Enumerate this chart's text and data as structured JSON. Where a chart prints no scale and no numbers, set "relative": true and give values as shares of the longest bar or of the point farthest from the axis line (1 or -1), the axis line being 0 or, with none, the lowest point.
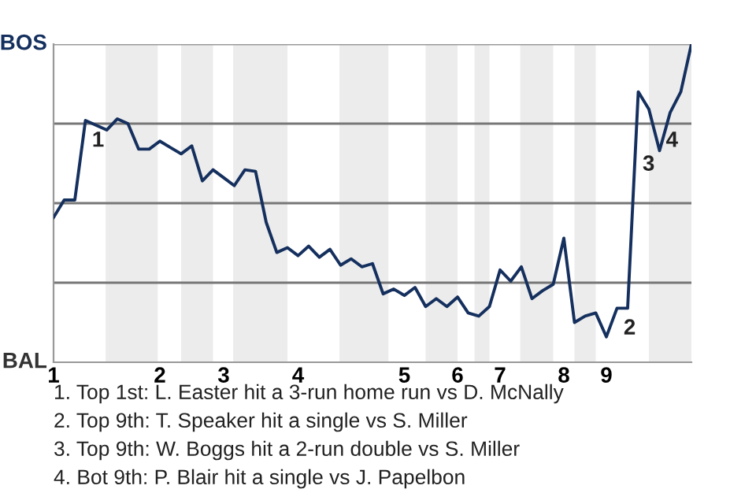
{
  "chart_data": {
    "type": "line",
    "relative": true,
    "categories": [
      "1",
      null,
      null,
      null,
      null,
      null,
      null,
      null,
      null,
      null,
      "2",
      null,
      null,
      null,
      null,
      null,
      "3",
      null,
      null,
      null,
      null,
      null,
      null,
      "4",
      null,
      null,
      null,
      null,
      null,
      null,
      null,
      null,
      null,
      "5",
      null,
      null,
      null,
      null,
      "6",
      null,
      null,
      null,
      "7",
      null,
      null,
      null,
      null,
      null,
      "8",
      null,
      null,
      null,
      "9",
      null,
      null,
      null,
      null,
      null,
      null,
      null,
      null
    ],
    "series": [
      {
        "color": "#15305e",
        "values": [
          0.455,
          0.51,
          0.51,
          0.76,
          0.745,
          0.73,
          0.765,
          0.75,
          0.67,
          0.67,
          0.695,
          0.675,
          0.655,
          0.68,
          0.57,
          0.605,
          0.58,
          0.555,
          0.605,
          0.6,
          0.44,
          0.345,
          0.36,
          0.335,
          0.365,
          0.33,
          0.355,
          0.305,
          0.325,
          0.3,
          0.31,
          0.215,
          0.23,
          0.21,
          0.235,
          0.175,
          0.2,
          0.175,
          0.205,
          0.155,
          0.145,
          0.175,
          0.29,
          0.255,
          0.3,
          0.2,
          0.225,
          0.245,
          0.39,
          0.125,
          0.145,
          0.155,
          0.08,
          0.17,
          0.17,
          0.85,
          0.795,
          0.665,
          0.785,
          0.85,
          1
        ]
      }
    ],
    "ref_lines": [
      {
        "axis": "y",
        "value": 0.25,
        "color": "#777777"
      },
      {
        "axis": "y",
        "value": 0.5,
        "color": "#777777"
      },
      {
        "axis": "y",
        "value": 0.75,
        "color": "#777777"
      },
      {
        "axis": "y",
        "value": 1,
        "color": "#999999"
      }
    ],
    "annotations": [
      "BOS",
      "BAL",
      {
        "text": "1",
        "y": 0.76
      },
      {
        "text": "2",
        "y": 0.17
      },
      "3",
      "4",
      "1. Top 1st: L. Easter hit a 3-run home run vs D. McNally",
      "2. Top 9th: T. Speaker hit a single vs S. Miller",
      "3. Top 9th: W. Boggs hit a 2-run double vs S. Miller",
      "4. Bot 9th: P. Blair hit a single vs J. Papelbon"
    ]
  }
}
